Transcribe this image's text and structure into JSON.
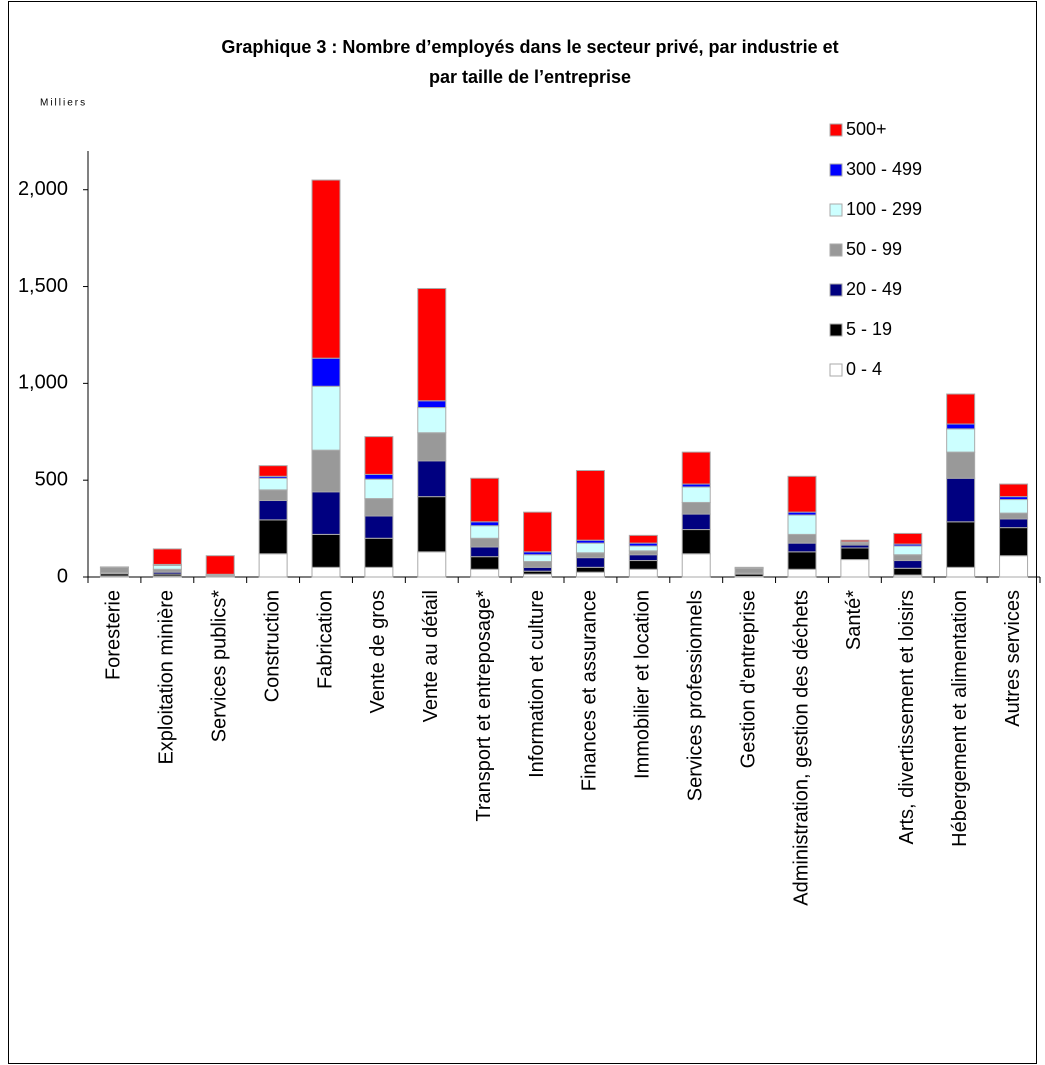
{
  "chart_data": {
    "type": "stacked_bar",
    "title": [
      "Graphique 3 : Nombre d’employés dans le secteur privé, par industrie et",
      "par taille de l’entreprise"
    ],
    "y_label": "Milliers",
    "categories": [
      "Foresterie",
      "Exploitation minière",
      "Services publics*",
      "Construction",
      "Fabrication",
      "Vente de gros",
      "Vente au détail",
      "Transport et entreposage*",
      "Information et culture",
      "Finances et assurance",
      "Immobilier et location",
      "Services professionnels",
      "Gestion d'entreprise",
      "Administration, gestion des déchets",
      "Santé*",
      "Arts, divertissement et loisirs",
      "Hébergement et alimentation",
      "Autres services"
    ],
    "series": [
      {
        "name": "0 - 4",
        "color": "#ffffff",
        "values": [
          5,
          5,
          1,
          120,
          50,
          50,
          130,
          40,
          15,
          25,
          40,
          120,
          3,
          40,
          90,
          10,
          50,
          110
        ]
      },
      {
        "name": "5 - 19",
        "color": "#000000",
        "values": [
          12,
          10,
          2,
          175,
          170,
          150,
          285,
          65,
          15,
          25,
          45,
          125,
          12,
          90,
          60,
          35,
          235,
          145
        ]
      },
      {
        "name": "20 - 49",
        "color": "#000080",
        "values": [
          5,
          10,
          2,
          100,
          220,
          115,
          185,
          50,
          20,
          50,
          30,
          80,
          5,
          45,
          15,
          40,
          225,
          45
        ]
      },
      {
        "name": "50 - 99",
        "color": "#999999",
        "values": [
          28,
          15,
          3,
          55,
          215,
          90,
          145,
          45,
          30,
          25,
          20,
          60,
          25,
          45,
          10,
          30,
          135,
          30
        ]
      },
      {
        "name": "100 - 299",
        "color": "#ccffff",
        "values": [
          2,
          20,
          3,
          60,
          330,
          100,
          130,
          65,
          35,
          50,
          25,
          80,
          5,
          100,
          5,
          45,
          120,
          70
        ]
      },
      {
        "name": "300 - 499",
        "color": "#0000ff",
        "values": [
          0,
          5,
          3,
          10,
          145,
          25,
          35,
          20,
          15,
          15,
          15,
          15,
          0,
          15,
          2,
          10,
          25,
          15
        ]
      },
      {
        "name": "500+",
        "color": "#ff0000",
        "values": [
          0,
          80,
          96,
          55,
          920,
          195,
          580,
          225,
          205,
          360,
          40,
          165,
          0,
          185,
          8,
          55,
          155,
          65
        ]
      }
    ],
    "ylim": [
      0,
      2200
    ],
    "yticks": [
      0,
      500,
      {
        "value": 1000,
        "label": "1,000"
      },
      {
        "value": 1500,
        "label": "1,500"
      },
      {
        "value": 2000,
        "label": "2,000"
      }
    ],
    "grid": false
  }
}
